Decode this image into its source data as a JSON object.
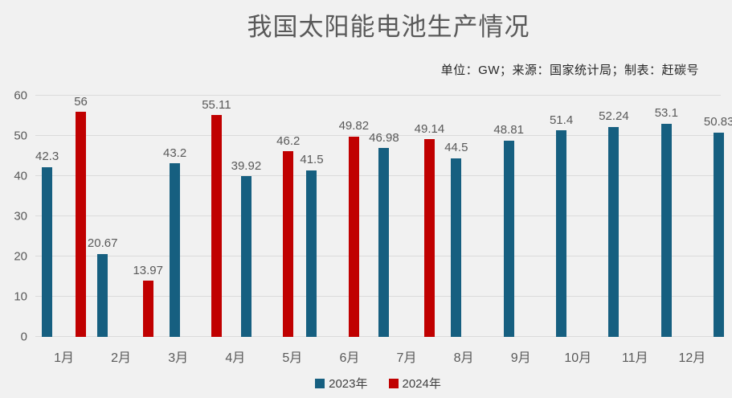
{
  "title": "我国太阳能电池生产情况",
  "subtitle": "单位：GW；来源：国家统计局；制表：赶碳号",
  "colors": {
    "background": "#f1f1f1",
    "bar_2023": "#165f80",
    "bar_2024": "#c00000",
    "gridline": "#dbdbdb",
    "axis_text": "#595959",
    "title_text": "#595959",
    "subtitle_text": "#262626"
  },
  "chart_data": {
    "type": "bar",
    "title": "我国太阳能电池生产情况",
    "subtitle": "单位：GW；来源：国家统计局；制表：赶碳号",
    "unit": "GW",
    "categories": [
      "1月",
      "2月",
      "3月",
      "4月",
      "5月",
      "6月",
      "7月",
      "8月",
      "9月",
      "10月",
      "11月",
      "12月"
    ],
    "series": [
      {
        "name": "2023年",
        "color": "#165f80",
        "values": [
          42.3,
          20.67,
          43.2,
          39.92,
          41.5,
          46.98,
          44.5,
          48.81,
          51.4,
          52.24,
          53.1,
          50.83
        ]
      },
      {
        "name": "2024年",
        "color": "#c00000",
        "values": [
          56,
          13.97,
          55.11,
          46.2,
          49.82,
          49.14,
          null,
          null,
          null,
          null,
          null,
          null
        ]
      }
    ],
    "xlabel": "",
    "ylabel": "",
    "ylim": [
      0,
      60
    ],
    "yticks": [
      0,
      10,
      20,
      30,
      40,
      50,
      60
    ],
    "grid": true,
    "value_labels": true,
    "legend_position": "bottom"
  }
}
